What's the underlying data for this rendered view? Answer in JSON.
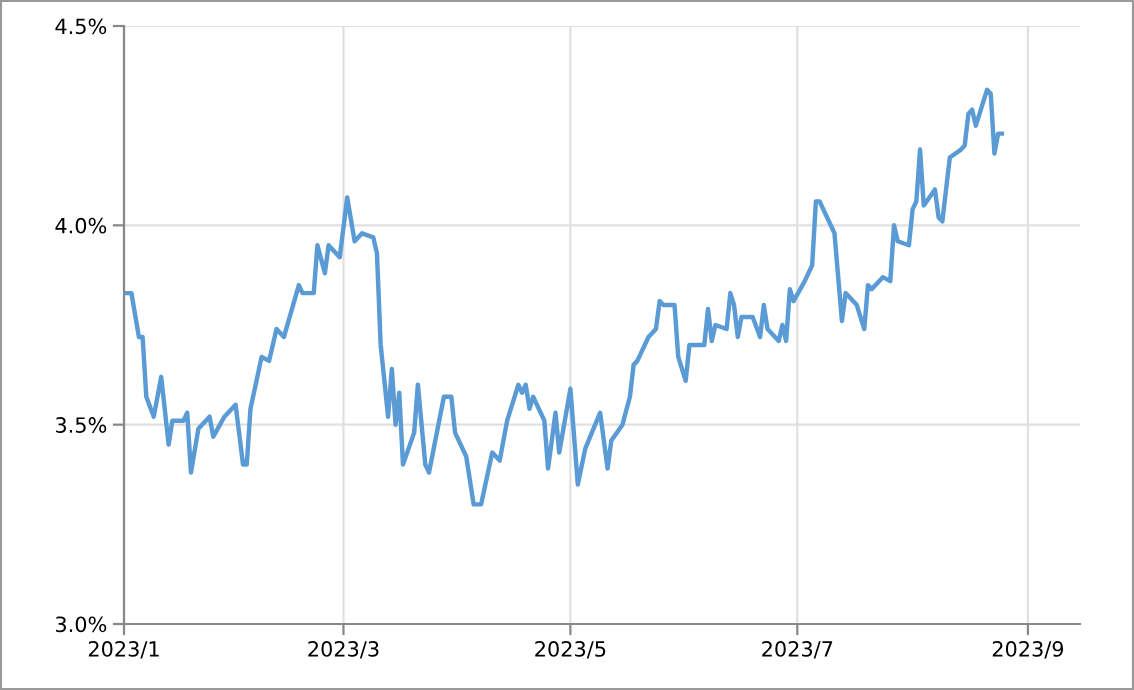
{
  "chart_data": {
    "type": "line",
    "x": [
      "2023-01-01",
      "2023-01-03",
      "2023-01-05",
      "2023-01-06",
      "2023-01-07",
      "2023-01-09",
      "2023-01-11",
      "2023-01-13",
      "2023-01-14",
      "2023-01-17",
      "2023-01-18",
      "2023-01-19",
      "2023-01-21",
      "2023-01-24",
      "2023-01-25",
      "2023-01-28",
      "2023-01-31",
      "2023-02-02",
      "2023-02-03",
      "2023-02-04",
      "2023-02-07",
      "2023-02-09",
      "2023-02-11",
      "2023-02-13",
      "2023-02-17",
      "2023-02-18",
      "2023-02-21",
      "2023-02-22",
      "2023-02-24",
      "2023-02-25",
      "2023-02-28",
      "2023-03-02",
      "2023-03-04",
      "2023-03-06",
      "2023-03-09",
      "2023-03-10",
      "2023-03-11",
      "2023-03-13",
      "2023-03-14",
      "2023-03-15",
      "2023-03-16",
      "2023-03-17",
      "2023-03-20",
      "2023-03-21",
      "2023-03-23",
      "2023-03-24",
      "2023-03-28",
      "2023-03-30",
      "2023-03-31",
      "2023-04-03",
      "2023-04-05",
      "2023-04-07",
      "2023-04-10",
      "2023-04-12",
      "2023-04-14",
      "2023-04-17",
      "2023-04-18",
      "2023-04-19",
      "2023-04-20",
      "2023-04-21",
      "2023-04-24",
      "2023-04-25",
      "2023-04-27",
      "2023-04-28",
      "2023-05-01",
      "2023-05-03",
      "2023-05-05",
      "2023-05-09",
      "2023-05-11",
      "2023-05-12",
      "2023-05-15",
      "2023-05-17",
      "2023-05-18",
      "2023-05-19",
      "2023-05-22",
      "2023-05-24",
      "2023-05-25",
      "2023-05-26",
      "2023-05-29",
      "2023-05-30",
      "2023-06-01",
      "2023-06-02",
      "2023-06-06",
      "2023-06-07",
      "2023-06-08",
      "2023-06-09",
      "2023-06-12",
      "2023-06-13",
      "2023-06-14",
      "2023-06-15",
      "2023-06-16",
      "2023-06-19",
      "2023-06-21",
      "2023-06-22",
      "2023-06-23",
      "2023-06-26",
      "2023-06-27",
      "2023-06-28",
      "2023-06-29",
      "2023-06-30",
      "2023-07-03",
      "2023-07-05",
      "2023-07-06",
      "2023-07-07",
      "2023-07-11",
      "2023-07-13",
      "2023-07-14",
      "2023-07-17",
      "2023-07-19",
      "2023-07-20",
      "2023-07-21",
      "2023-07-24",
      "2023-07-26",
      "2023-07-27",
      "2023-07-28",
      "2023-07-31",
      "2023-08-01",
      "2023-08-02",
      "2023-08-03",
      "2023-08-04",
      "2023-08-07",
      "2023-08-08",
      "2023-08-09",
      "2023-08-11",
      "2023-08-14",
      "2023-08-15",
      "2023-08-16",
      "2023-08-17",
      "2023-08-18",
      "2023-08-21",
      "2023-08-22",
      "2023-08-23",
      "2023-08-24",
      "2023-08-25"
    ],
    "series": [
      {
        "color": "#5b9bd5",
        "values": [
          3.83,
          3.83,
          3.72,
          3.72,
          3.57,
          3.52,
          3.62,
          3.45,
          3.51,
          3.51,
          3.53,
          3.38,
          3.49,
          3.52,
          3.47,
          3.52,
          3.55,
          3.4,
          3.4,
          3.54,
          3.67,
          3.66,
          3.74,
          3.72,
          3.85,
          3.83,
          3.83,
          3.95,
          3.88,
          3.95,
          3.92,
          4.07,
          3.96,
          3.98,
          3.97,
          3.93,
          3.7,
          3.52,
          3.64,
          3.5,
          3.58,
          3.4,
          3.48,
          3.6,
          3.4,
          3.38,
          3.57,
          3.57,
          3.48,
          3.42,
          3.3,
          3.3,
          3.43,
          3.41,
          3.51,
          3.6,
          3.58,
          3.6,
          3.54,
          3.57,
          3.51,
          3.39,
          3.53,
          3.43,
          3.59,
          3.35,
          3.44,
          3.53,
          3.39,
          3.46,
          3.5,
          3.57,
          3.65,
          3.66,
          3.72,
          3.74,
          3.81,
          3.8,
          3.8,
          3.67,
          3.61,
          3.7,
          3.7,
          3.79,
          3.71,
          3.75,
          3.74,
          3.83,
          3.8,
          3.72,
          3.77,
          3.77,
          3.72,
          3.8,
          3.74,
          3.71,
          3.75,
          3.71,
          3.84,
          3.81,
          3.86,
          3.9,
          4.06,
          4.06,
          3.98,
          3.76,
          3.83,
          3.8,
          3.74,
          3.85,
          3.84,
          3.87,
          3.86,
          4.0,
          3.96,
          3.95,
          4.04,
          4.06,
          4.19,
          4.05,
          4.09,
          4.02,
          4.01,
          4.17,
          4.19,
          4.2,
          4.28,
          4.29,
          4.25,
          4.34,
          4.33,
          4.18,
          4.23,
          4.23
        ]
      }
    ],
    "xlim": [
      "2023-01-01",
      "2023-09-15"
    ],
    "xticks": [
      {
        "value": "2023-01-01",
        "label": "2023/1"
      },
      {
        "value": "2023-03-01",
        "label": "2023/3"
      },
      {
        "value": "2023-05-01",
        "label": "2023/5"
      },
      {
        "value": "2023-07-01",
        "label": "2023/7"
      },
      {
        "value": "2023-09-01",
        "label": "2023/9"
      }
    ],
    "ylim": [
      3.0,
      4.5
    ],
    "yticks": [
      {
        "value": 3.0,
        "label": "3.0%"
      },
      {
        "value": 3.5,
        "label": "3.5%"
      },
      {
        "value": 4.0,
        "label": "4.0%"
      },
      {
        "value": 4.5,
        "label": "4.5%"
      }
    ],
    "grid": true,
    "marker": "none",
    "line_style": "solid"
  }
}
